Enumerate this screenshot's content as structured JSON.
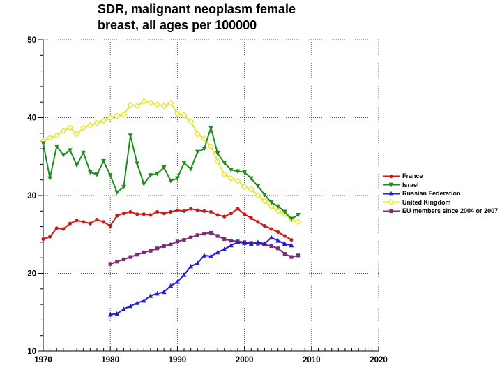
{
  "chart_data": {
    "type": "line",
    "title": "SDR, malignant neoplasm female breast, all ages per 100000",
    "title_lines": [
      "SDR, malignant neoplasm female",
      "breast, all ages per 100000"
    ],
    "xlabel": "",
    "ylabel": "",
    "xlim": [
      1970,
      2020
    ],
    "ylim": [
      10,
      50
    ],
    "x_ticks_major": [
      1970,
      1980,
      1990,
      2000,
      2010,
      2020
    ],
    "x_tick_minor_step": 1,
    "y_ticks_major": [
      10,
      20,
      30,
      40,
      50
    ],
    "y_tick_minor_step": 2,
    "grid": "dotted lines at major ticks",
    "legend_position": "right",
    "series": [
      {
        "name": "France",
        "color": "#cc1a1a",
        "marker": "circle",
        "start_year": 1970,
        "values": [
          24.4,
          24.7,
          25.8,
          25.7,
          26.4,
          26.8,
          26.6,
          26.4,
          26.9,
          26.6,
          26.1,
          27.4,
          27.7,
          27.9,
          27.6,
          27.6,
          27.5,
          27.9,
          27.7,
          27.9,
          28.1,
          28.0,
          28.3,
          28.1,
          28.0,
          27.9,
          27.5,
          27.3,
          27.7,
          28.3,
          27.6,
          27.1,
          26.6,
          26.1,
          25.7,
          25.3,
          24.8,
          24.3
        ]
      },
      {
        "name": "Israel",
        "color": "#1f8b1f",
        "marker": "triangle-down",
        "start_year": 1970,
        "values": [
          36.7,
          32.2,
          36.3,
          35.2,
          35.8,
          33.9,
          35.5,
          33.0,
          32.7,
          34.4,
          32.6,
          30.4,
          31.1,
          37.7,
          34.1,
          31.5,
          32.6,
          32.8,
          33.6,
          31.9,
          32.2,
          34.2,
          33.4,
          35.6,
          36.0,
          38.7,
          35.4,
          34.2,
          33.3,
          33.1,
          33.0,
          32.2,
          31.2,
          30.1,
          29.1,
          28.6,
          27.9,
          27.0,
          27.5
        ]
      },
      {
        "name": "Russian Federation",
        "color": "#2222cc",
        "marker": "triangle-up",
        "start_year": 1980,
        "values": [
          14.7,
          14.8,
          15.4,
          15.8,
          16.2,
          16.5,
          17.1,
          17.4,
          17.6,
          18.4,
          18.9,
          19.8,
          20.9,
          21.3,
          22.3,
          22.2,
          22.7,
          23.1,
          23.6,
          24.0,
          23.9,
          23.8,
          24.0,
          23.8,
          24.6,
          24.2,
          23.8,
          23.6
        ]
      },
      {
        "name": "United Kingdom",
        "color": "#e2e232",
        "marker": "diamond-open",
        "start_year": 1970,
        "values": [
          37.0,
          37.4,
          37.7,
          38.3,
          38.7,
          37.9,
          38.7,
          39.0,
          39.3,
          39.6,
          40.0,
          40.2,
          40.4,
          41.6,
          41.5,
          42.1,
          41.9,
          41.7,
          41.5,
          41.9,
          40.5,
          40.3,
          39.5,
          37.9,
          37.3,
          36.3,
          34.4,
          32.7,
          32.2,
          31.9,
          31.1,
          30.8,
          30.0,
          29.3,
          28.6,
          28.0,
          27.6,
          26.9,
          26.6
        ]
      },
      {
        "name": "EU members since 2004 or 2007",
        "color": "#772d77",
        "marker": "square",
        "start_year": 1980,
        "values": [
          21.2,
          21.5,
          21.8,
          22.1,
          22.4,
          22.7,
          22.9,
          23.2,
          23.5,
          23.7,
          24.1,
          24.3,
          24.6,
          24.9,
          25.1,
          25.2,
          24.8,
          24.4,
          24.2,
          24.1,
          24.0,
          23.9,
          23.8,
          23.7,
          23.5,
          23.2,
          22.5,
          22.1,
          22.3
        ]
      }
    ]
  }
}
